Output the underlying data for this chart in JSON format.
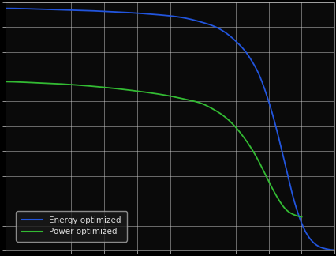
{
  "background_color": "#000000",
  "plot_bg_color": "#0a0a0a",
  "grid_color": "#cccccc",
  "axis_color": "#cccccc",
  "spine_color": "#888888",
  "title": "",
  "energy_color": "#2255dd",
  "power_color": "#33bb33",
  "legend_labels": [
    "Energy optimized",
    "Power optimized"
  ],
  "legend_bg": "#1a1a1a",
  "legend_edge": "#aaaaaa",
  "legend_text_color": "#dddddd",
  "xlim": [
    0,
    10
  ],
  "ylim": [
    0,
    1
  ],
  "figsize": [
    4.27,
    3.24
  ],
  "dpi": 100,
  "energy_x": [
    0.0,
    0.5,
    1.0,
    1.5,
    2.0,
    2.5,
    3.0,
    3.5,
    4.0,
    4.5,
    5.0,
    5.5,
    6.0,
    6.3,
    6.6,
    6.9,
    7.1,
    7.3,
    7.5,
    7.7,
    7.9,
    8.1,
    8.3,
    8.5,
    8.7,
    8.9,
    9.1,
    9.3,
    9.5,
    9.7,
    9.9,
    10.0
  ],
  "energy_y": [
    0.975,
    0.974,
    0.972,
    0.97,
    0.968,
    0.966,
    0.963,
    0.96,
    0.956,
    0.951,
    0.945,
    0.935,
    0.918,
    0.905,
    0.885,
    0.855,
    0.83,
    0.8,
    0.76,
    0.71,
    0.64,
    0.555,
    0.455,
    0.345,
    0.235,
    0.145,
    0.08,
    0.04,
    0.018,
    0.008,
    0.003,
    0.002
  ],
  "power_x": [
    0.0,
    0.5,
    1.0,
    1.5,
    2.0,
    2.5,
    3.0,
    3.5,
    4.0,
    4.5,
    5.0,
    5.5,
    6.0,
    6.3,
    6.6,
    6.9,
    7.1,
    7.3,
    7.5,
    7.7,
    7.9,
    8.1,
    8.3,
    8.5,
    8.7,
    8.9,
    9.0
  ],
  "power_y": [
    0.68,
    0.678,
    0.675,
    0.672,
    0.668,
    0.663,
    0.657,
    0.65,
    0.642,
    0.633,
    0.622,
    0.608,
    0.59,
    0.57,
    0.545,
    0.51,
    0.48,
    0.445,
    0.405,
    0.358,
    0.305,
    0.252,
    0.205,
    0.168,
    0.148,
    0.138,
    0.135
  ]
}
